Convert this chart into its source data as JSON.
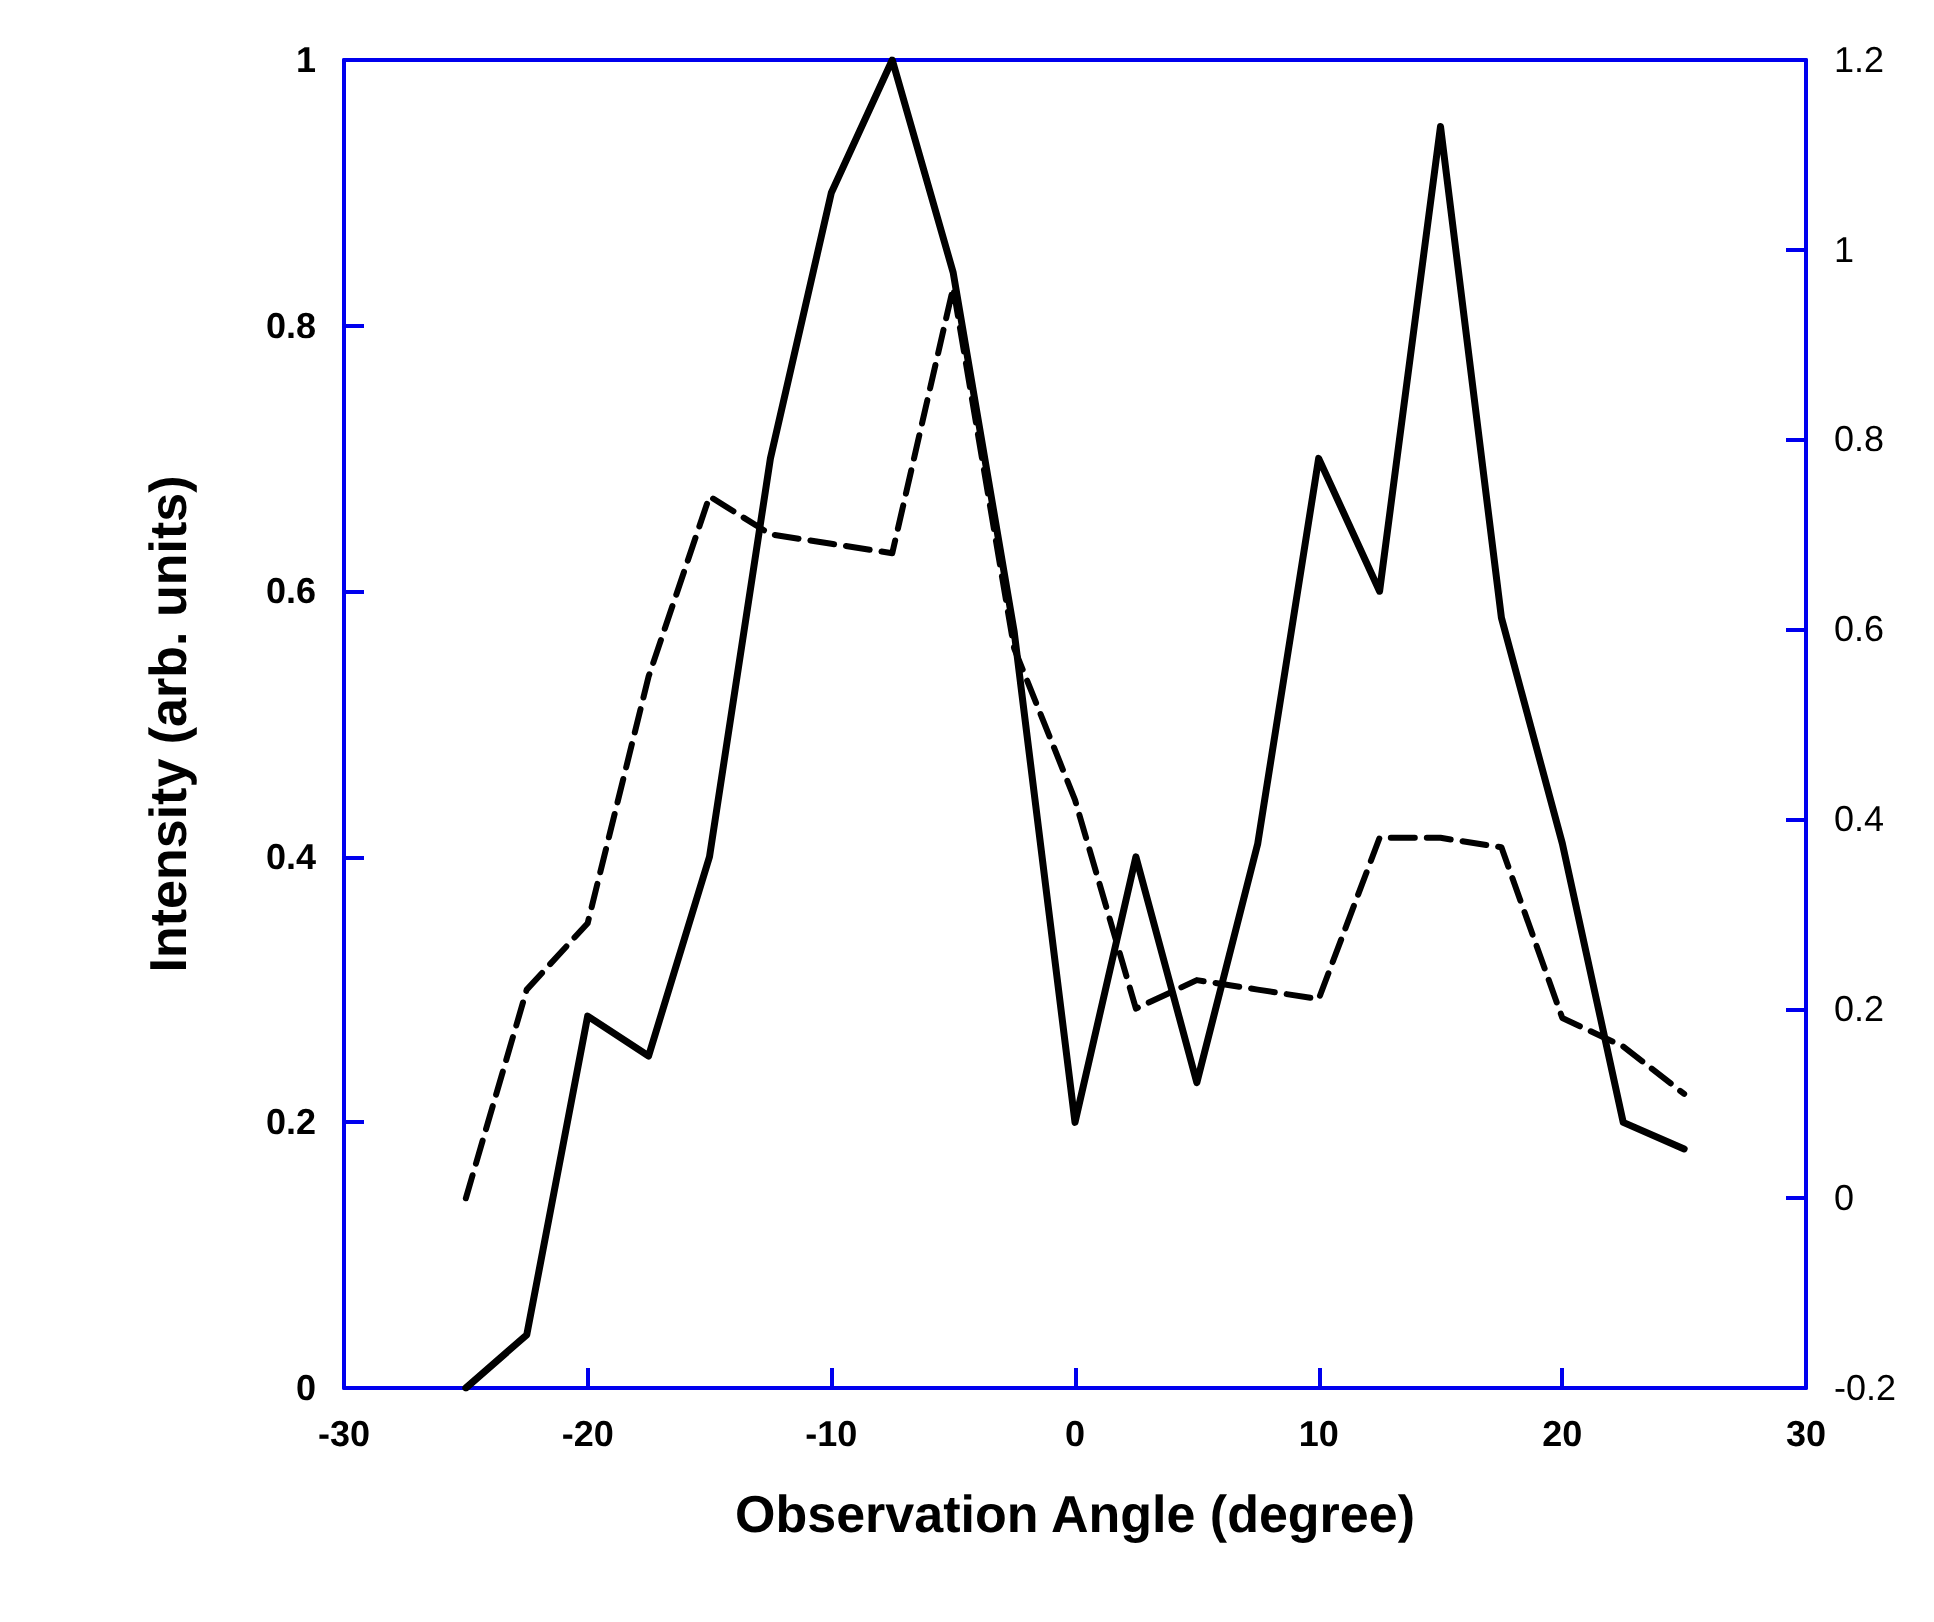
{
  "chart_data": {
    "type": "line",
    "xlabel": "Observation Angle (degree)",
    "ylabel": "Intensity (arb. units)",
    "x": [
      -25,
      -22.5,
      -20,
      -17.5,
      -15,
      -12.5,
      -10,
      -7.5,
      -5,
      -2.5,
      0,
      2.5,
      5,
      7.5,
      10,
      12.5,
      15,
      17.5,
      20,
      22.5,
      25
    ],
    "series": [
      {
        "color": "#000000",
        "line_style": "solid",
        "values": [
          0,
          0.04,
          0.28,
          0.25,
          0.4,
          0.7,
          0.9,
          1.0,
          0.84,
          0.57,
          0.2,
          0.4,
          0.23,
          0.41,
          0.7,
          0.6,
          0.95,
          0.58,
          0.41,
          0.2,
          0.18
        ]
      },
      {
        "color": "#000000",
        "line_style": "dashed",
        "axis": "y2",
        "values": [
          0.0,
          0.22,
          0.29,
          0.55,
          0.74,
          0.7,
          0.69,
          0.68,
          0.96,
          0.58,
          0.42,
          0.2,
          0.23,
          0.22,
          0.21,
          0.38,
          0.38,
          0.37,
          0.19,
          0.16,
          0.11
        ]
      }
    ],
    "xlim": [
      -30,
      30
    ],
    "xticks": [
      -30,
      -20,
      -10,
      0,
      10,
      20,
      30
    ],
    "ylim": [
      0,
      1
    ],
    "yticks": [
      0,
      0.2,
      0.4,
      0.6,
      0.8,
      1
    ],
    "y2lim": [
      -0.2,
      1.2
    ],
    "y2ticks": [
      -0.2,
      0,
      0.2,
      0.4,
      0.6,
      0.8,
      1,
      1.2
    ],
    "grid": false,
    "marker": "none"
  }
}
